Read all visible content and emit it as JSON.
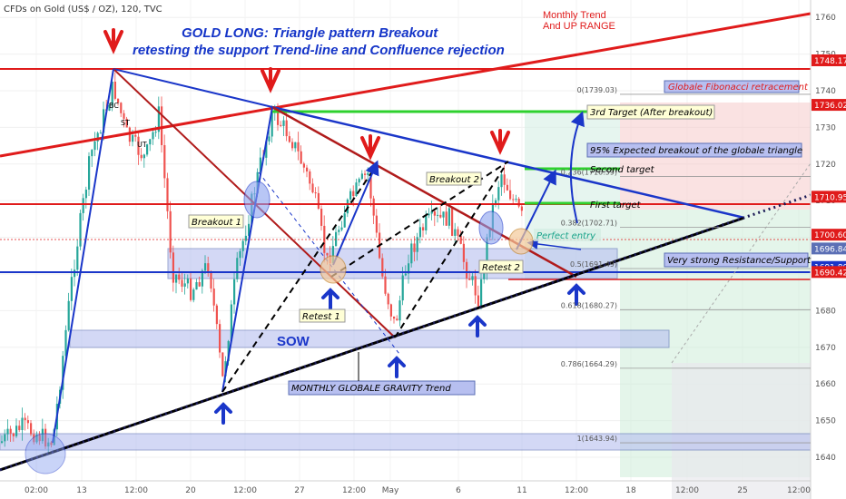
{
  "header": {
    "symbol": "CFDs on Gold (US$ / OZ), 120, TVC",
    "title_line1": "GOLD LONG: Triangle pattern Breakout",
    "title_line2": "retesting the support Trend-line and Confluence rejection"
  },
  "chart_data": {
    "type": "candlestick",
    "ylim": [
      1633,
      1768
    ],
    "yticks": [
      1640,
      1650,
      1660,
      1670,
      1680,
      1690,
      1700,
      1710,
      1720,
      1730,
      1740,
      1750,
      1760
    ],
    "xticks": [
      "02:00",
      "13",
      "12:00",
      "20",
      "12:00",
      "27",
      "12:00",
      "May",
      "6",
      "11",
      "12:00",
      "18",
      "12:00",
      "25",
      "12:00"
    ],
    "price_tags": [
      {
        "value": "1748.17",
        "color": "#e01b1b"
      },
      {
        "value": "1736.02",
        "color": "#e01b1b"
      },
      {
        "value": "1710.95",
        "color": "#e01b1b"
      },
      {
        "value": "1700.60",
        "color": "#e01b1b"
      },
      {
        "value": "1696.84",
        "color": "#5b6fb5"
      },
      {
        "value": "1691.80",
        "color": "#1a36c9"
      },
      {
        "value": "1690.42",
        "color": "#e01b1b"
      }
    ],
    "fibonacci": {
      "title": "Globale Fibonacci retracement",
      "levels": [
        "0(1739.03)",
        "0.236(1716.59)",
        "0.382(1702.71)",
        "0.5(1691.49)",
        "0.618(1680.27)",
        "0.786(1664.29)",
        "1(1643.94)"
      ]
    },
    "annotations": {
      "monthly_trend": "Monthly Trend",
      "up_range": "And UP RANGE",
      "target3": "3rd Target (After breakout)",
      "expected": "95% Expected breakout of the globale triangle",
      "target2": "Second target",
      "target1": "First target",
      "perfect_entry": "Perfect entry",
      "resistance_support": "Very strong Resistance/Support",
      "breakout1": "Breakout 1",
      "breakout2": "Breakout 2",
      "retest1": "Retest 1",
      "retest2": "Retest 2",
      "sow": "SOW",
      "gravity": "MONTHLY GLOBALE GRAVITY Trend",
      "bc": "BC",
      "st": "ST",
      "ut": "UT"
    },
    "colors": {
      "up": "#26a69a",
      "down": "#ef5350",
      "trend": "#e01b1b",
      "triangle": "#1a36c9",
      "target": "#2ed12e"
    }
  }
}
